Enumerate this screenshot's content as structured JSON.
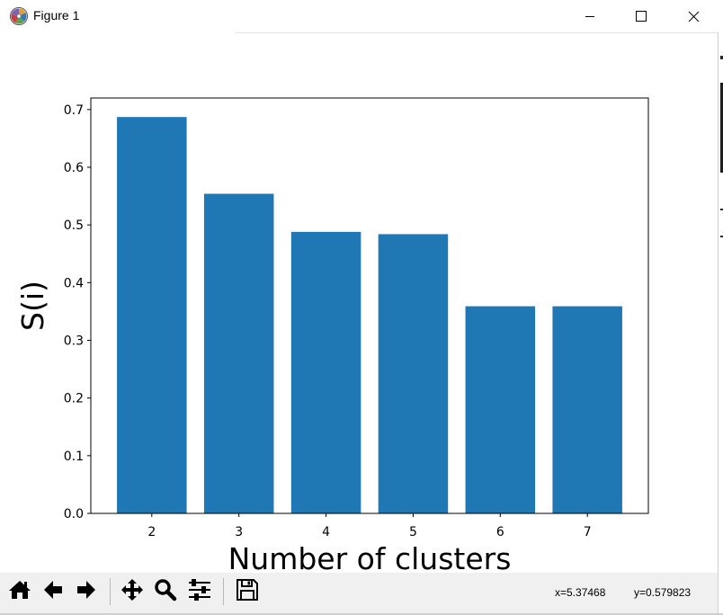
{
  "window": {
    "title": "Figure 1",
    "icon": "matplotlib-logo-icon",
    "controls": [
      "minimize-icon",
      "maximize-icon",
      "close-icon"
    ]
  },
  "chart_data": {
    "type": "bar",
    "categories": [
      "2",
      "3",
      "4",
      "5",
      "6",
      "7"
    ],
    "values": [
      0.687,
      0.554,
      0.488,
      0.484,
      0.359,
      0.359
    ],
    "xlabel": "Number of clusters",
    "ylabel": "S(i)",
    "ylim": [
      0.0,
      0.72
    ],
    "yticks": [
      "0.0",
      "0.1",
      "0.2",
      "0.3",
      "0.4",
      "0.5",
      "0.6",
      "0.7"
    ],
    "grid": false,
    "bar_color": "#1f77b4"
  },
  "toolbar": {
    "buttons": [
      "home-icon",
      "back-arrow-icon",
      "forward-arrow-icon",
      "pan-icon",
      "zoom-icon",
      "configure-subplots-icon",
      "save-icon"
    ],
    "x_readout": "x=5.37468",
    "y_readout": "y=0.579823"
  }
}
